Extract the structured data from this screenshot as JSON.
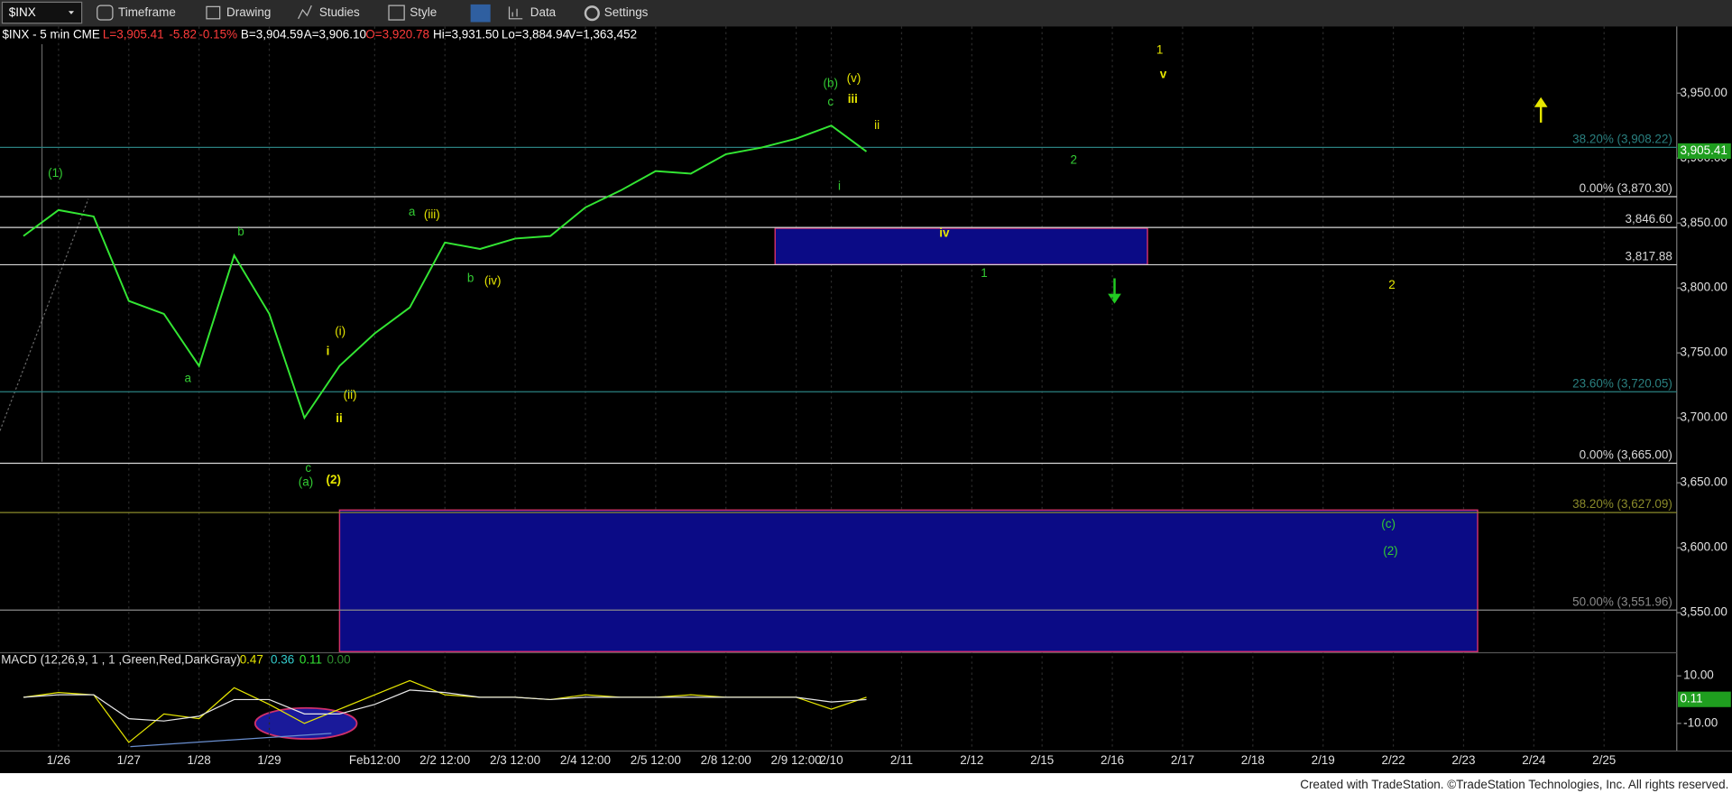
{
  "toolbar": {
    "symbol": "$INX",
    "menus": [
      "Timeframe",
      "Drawing",
      "Studies",
      "Style",
      "Data",
      "Settings"
    ]
  },
  "header": [
    {
      "text": "$INX - 5 min  CME",
      "color": "#ffffff"
    },
    {
      "text": "L=3,905.41",
      "color": "#ff3b3b"
    },
    {
      "text": "-5.82",
      "color": "#ff3b3b"
    },
    {
      "text": "-0.15%",
      "color": "#ff3b3b"
    },
    {
      "text": "B=3,904.59",
      "color": "#ffffff"
    },
    {
      "text": "A=3,906.10",
      "color": "#ffffff"
    },
    {
      "text": "O=3,920.78",
      "color": "#ff3b3b"
    },
    {
      "text": "Hi=3,931.50",
      "color": "#ffffff"
    },
    {
      "text": "Lo=3,884.94",
      "color": "#ffffff"
    },
    {
      "text": "V=1,363,452",
      "color": "#ffffff"
    }
  ],
  "chart_data": [
    {
      "type": "line",
      "categories": [
        null,
        "1/26",
        null,
        "1/27",
        null,
        "1/28",
        null,
        "1/29",
        null,
        null,
        "Feb12:00",
        null,
        "2/2 12:00",
        null,
        "2/3 12:00",
        null,
        "2/4 12:00",
        null,
        "2/5 12:00",
        null,
        "2/8 12:00",
        null,
        "2/9 12:00",
        "2/10",
        null,
        "2/11",
        null,
        "2/12",
        null,
        "2/15",
        null,
        "2/16",
        null,
        "2/17",
        null,
        "2/18",
        null,
        "2/19",
        null,
        "2/22",
        null,
        "2/23",
        null,
        "2/24",
        null,
        "2/25"
      ],
      "series": [
        {
          "color": "#33e633",
          "values": [
            3840,
            3860,
            3855,
            3790,
            3780,
            3740,
            3825,
            3780,
            3700,
            3740,
            3765,
            3785,
            3835,
            3830,
            3838,
            3840,
            3862,
            3875,
            3890,
            3888,
            3903,
            3908,
            3915,
            3925,
            3905,
            null,
            null,
            null,
            null,
            null,
            null,
            null,
            null,
            null,
            null,
            null,
            null,
            null,
            null,
            null,
            null,
            null,
            null,
            null,
            null,
            null
          ]
        }
      ],
      "ylim": [
        3520,
        4003
      ],
      "yticks": [
        {
          "value": 3550,
          "label": "3,550.00"
        },
        {
          "value": 3600,
          "label": "3,600.00"
        },
        {
          "value": 3650,
          "label": "3,650.00"
        },
        {
          "value": 3700,
          "label": "3,700.00"
        },
        {
          "value": 3750,
          "label": "3,750.00"
        },
        {
          "value": 3800,
          "label": "3,800.00"
        },
        {
          "value": 3850,
          "label": "3,850.00"
        },
        {
          "value": 3900,
          "label": "3,900.00"
        },
        {
          "value": 3950,
          "label": "3,950.00"
        }
      ],
      "last": {
        "value": 3905.41,
        "label": "3,905.41",
        "color": "#1f9e1f"
      },
      "levels": [
        {
          "value": 3908.22,
          "label": "38.20% (3,908.22)",
          "color": "#2a8080"
        },
        {
          "value": 3870.3,
          "label": "0.00% (3,870.30)",
          "color": "#d8d8d8"
        },
        {
          "value": 3846.6,
          "label": "3,846.60",
          "color": "#d8d8d8"
        },
        {
          "value": 3817.88,
          "label": "3,817.88",
          "color": "#d8d8d8"
        },
        {
          "value": 3720.05,
          "label": "23.60% (3,720.05)",
          "color": "#2a8080"
        },
        {
          "value": 3665.0,
          "label": "0.00% (3,665.00)",
          "color": "#d8d8d8"
        },
        {
          "value": 3627.09,
          "label": "38.20% (3,627.09)",
          "color": "#8a8a2a"
        },
        {
          "value": 3551.96,
          "label": "50.00% (3,551.96)",
          "color": "#8a8a8a"
        }
      ],
      "zones": [
        {
          "x": [
            21.4,
            32
          ],
          "y": [
            3818,
            3846
          ],
          "color": "#0b0b86",
          "edge": "#d0306a"
        },
        {
          "x": [
            9,
            41.4
          ],
          "y": [
            3520,
            3629
          ],
          "color": "#0b0b86",
          "edge": "#d0306a"
        }
      ],
      "annotations": [
        {
          "text": "(1)",
          "x": 0.91,
          "y": 3888,
          "color": "#33cc33"
        },
        {
          "text": "b",
          "x": 6.19,
          "y": 3843,
          "color": "#33cc33"
        },
        {
          "text": "a",
          "x": 4.68,
          "y": 3730,
          "color": "#33cc33"
        },
        {
          "text": "i",
          "x": 8.67,
          "y": 3751,
          "color": "#e6e600",
          "bold": true
        },
        {
          "text": "(i)",
          "x": 9.02,
          "y": 3766,
          "color": "#e6e600"
        },
        {
          "text": "(ii)",
          "x": 9.3,
          "y": 3717,
          "color": "#e6e600"
        },
        {
          "text": "ii",
          "x": 8.99,
          "y": 3699,
          "color": "#e6e600",
          "bold": true
        },
        {
          "text": "c",
          "x": 8.11,
          "y": 3661,
          "color": "#33cc33"
        },
        {
          "text": "(a)",
          "x": 8.04,
          "y": 3650,
          "color": "#33cc33"
        },
        {
          "text": "(2)",
          "x": 8.83,
          "y": 3652,
          "color": "#e6e600",
          "bold": true
        },
        {
          "text": "a",
          "x": 11.06,
          "y": 3858,
          "color": "#33cc33"
        },
        {
          "text": "(iii)",
          "x": 11.63,
          "y": 3856,
          "color": "#e6e600"
        },
        {
          "text": "b",
          "x": 12.73,
          "y": 3807,
          "color": "#33cc33"
        },
        {
          "text": "(iv)",
          "x": 13.36,
          "y": 3805,
          "color": "#e6e600"
        },
        {
          "text": "(b)",
          "x": 22.98,
          "y": 3957,
          "color": "#33cc33"
        },
        {
          "text": "(v)",
          "x": 23.64,
          "y": 3961,
          "color": "#e6e600"
        },
        {
          "text": "c",
          "x": 22.98,
          "y": 3943,
          "color": "#33cc33"
        },
        {
          "text": "iii",
          "x": 23.61,
          "y": 3945,
          "color": "#e6e600",
          "bold": true
        },
        {
          "text": "ii",
          "x": 24.3,
          "y": 3925,
          "color": "#e6e600"
        },
        {
          "text": "i",
          "x": 23.23,
          "y": 3878,
          "color": "#33cc33"
        },
        {
          "text": "2",
          "x": 29.9,
          "y": 3898,
          "color": "#33cc33"
        },
        {
          "text": "iv",
          "x": 26.22,
          "y": 3842,
          "color": "#e6e600",
          "bold": true
        },
        {
          "text": "1",
          "x": 27.35,
          "y": 3811,
          "color": "#33cc33"
        },
        {
          "text": "1",
          "x": 32.35,
          "y": 3983,
          "color": "#e6e600"
        },
        {
          "text": "v",
          "x": 32.45,
          "y": 3964,
          "color": "#e6e600",
          "bold": true
        },
        {
          "text": "2",
          "x": 38.96,
          "y": 3802,
          "color": "#e6e600"
        },
        {
          "text": "(c)",
          "x": 38.86,
          "y": 3618,
          "color": "#33cc33"
        },
        {
          "text": "(2)",
          "x": 38.92,
          "y": 3597,
          "color": "#33cc33"
        }
      ]
    },
    {
      "type": "line",
      "title": "MACD (12,26,9, 1 , 1 ,Green,Red,DarkGray)",
      "readouts": [
        {
          "text": "0.47",
          "color": "#e6e600"
        },
        {
          "text": "0.36",
          "color": "#33cccc"
        },
        {
          "text": "0.11",
          "color": "#33e633"
        },
        {
          "text": "0.00",
          "color": "#2f8f2f"
        }
      ],
      "ylim": [
        -20.7,
        17.4
      ],
      "yticks": [
        {
          "value": 10,
          "label": "10.00"
        },
        {
          "value": -10,
          "label": "-10.00"
        }
      ],
      "last": {
        "value": 0.11,
        "label": "0.11",
        "color": "#1f9e1f"
      },
      "series": [
        {
          "color": "#e6e600",
          "values": [
            1,
            3,
            2,
            -18,
            -6,
            -8,
            5,
            -2,
            -10,
            -4,
            2,
            8,
            2,
            1,
            1,
            0,
            2,
            1,
            1,
            2,
            1,
            1,
            1,
            -4,
            1,
            null,
            null,
            null,
            null,
            null,
            null,
            null,
            null,
            null,
            null,
            null,
            null,
            null,
            null,
            null,
            null,
            null,
            null,
            null,
            null,
            null
          ]
        },
        {
          "color": "#e8e8e8",
          "values": [
            1,
            2,
            2,
            -8,
            -9,
            -7,
            0,
            0,
            -6,
            -6,
            -2,
            4,
            3,
            1,
            1,
            0,
            1,
            1,
            1,
            1,
            1,
            1,
            1,
            -1,
            0,
            null,
            null,
            null,
            null,
            null,
            null,
            null,
            null,
            null,
            null,
            null,
            null,
            null,
            null,
            null,
            null,
            null,
            null,
            null,
            null,
            null
          ]
        }
      ]
    }
  ],
  "footer": "Created with TradeStation. ©TradeStation Technologies, Inc. All rights reserved."
}
